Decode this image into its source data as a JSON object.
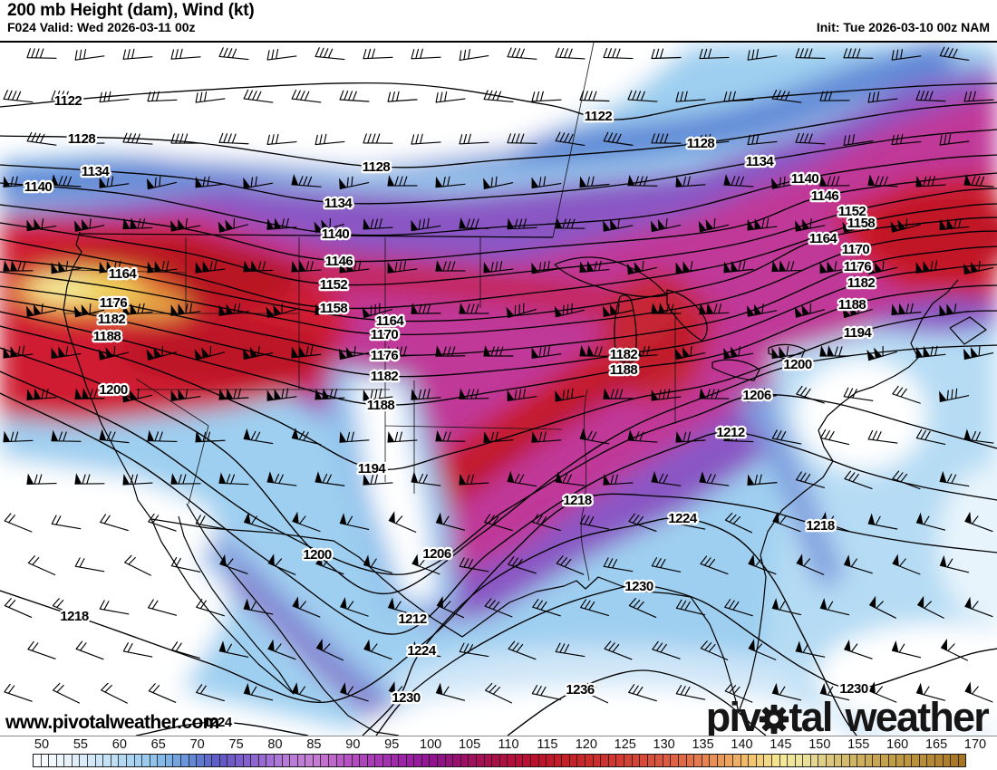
{
  "header": {
    "title": "200 mb Height (dam), Wind (kt)",
    "forecast_label": "F024 Valid: Wed 2026-03-11 00z",
    "init_label": "Init: Tue 2026-03-10 00z NAM"
  },
  "map": {
    "watermark": "www.pivotalweather.com",
    "logo": {
      "part1": "piv",
      "part2": "tal",
      "part3": "weather",
      "gear_icon": "gear"
    },
    "contour_unit": "dam",
    "shading_unit": "kt",
    "contours": [
      1122,
      1128,
      1134,
      1140,
      1146,
      1152,
      1158,
      1164,
      1170,
      1176,
      1182,
      1188,
      1194,
      1200,
      1206,
      1212,
      1218,
      1224,
      1230,
      1236
    ]
  },
  "colorbar": {
    "min": 50,
    "max": 170,
    "cell_step": 1,
    "tick_step": 5,
    "tick_labels": [
      "50",
      "55",
      "60",
      "65",
      "70",
      "75",
      "80",
      "85",
      "90",
      "95",
      "100",
      "105",
      "110",
      "115",
      "120",
      "125",
      "130",
      "135",
      "140",
      "145",
      "150",
      "155",
      "160",
      "165",
      "170"
    ],
    "stops": [
      {
        "v": 50,
        "c": "#ffffff"
      },
      {
        "v": 55,
        "c": "#e4f0fa"
      },
      {
        "v": 60,
        "c": "#c2e0f5"
      },
      {
        "v": 64,
        "c": "#9fceee"
      },
      {
        "v": 68,
        "c": "#79ade4"
      },
      {
        "v": 71,
        "c": "#5f7fd2"
      },
      {
        "v": 74,
        "c": "#6057c6"
      },
      {
        "v": 78,
        "c": "#8a62cf"
      },
      {
        "v": 82,
        "c": "#b27ad8"
      },
      {
        "v": 86,
        "c": "#c77fd3"
      },
      {
        "v": 90,
        "c": "#b857c5"
      },
      {
        "v": 94,
        "c": "#a93ab5"
      },
      {
        "v": 98,
        "c": "#9c21a5"
      },
      {
        "v": 102,
        "c": "#8f128b"
      },
      {
        "v": 106,
        "c": "#a00f60"
      },
      {
        "v": 110,
        "c": "#ad0f44"
      },
      {
        "v": 114,
        "c": "#b90f2f"
      },
      {
        "v": 118,
        "c": "#c41d26"
      },
      {
        "v": 122,
        "c": "#ca2c2b"
      },
      {
        "v": 126,
        "c": "#d23d33"
      },
      {
        "v": 130,
        "c": "#da513e"
      },
      {
        "v": 134,
        "c": "#e16c49"
      },
      {
        "v": 138,
        "c": "#ea9356"
      },
      {
        "v": 142,
        "c": "#f1c06c"
      },
      {
        "v": 146,
        "c": "#f4e896"
      },
      {
        "v": 149,
        "c": "#ece3a0"
      },
      {
        "v": 153,
        "c": "#d8c378"
      },
      {
        "v": 157,
        "c": "#cbac5a"
      },
      {
        "v": 161,
        "c": "#c09a46"
      },
      {
        "v": 165,
        "c": "#b78a36"
      },
      {
        "v": 170,
        "c": "#a57122"
      }
    ]
  }
}
